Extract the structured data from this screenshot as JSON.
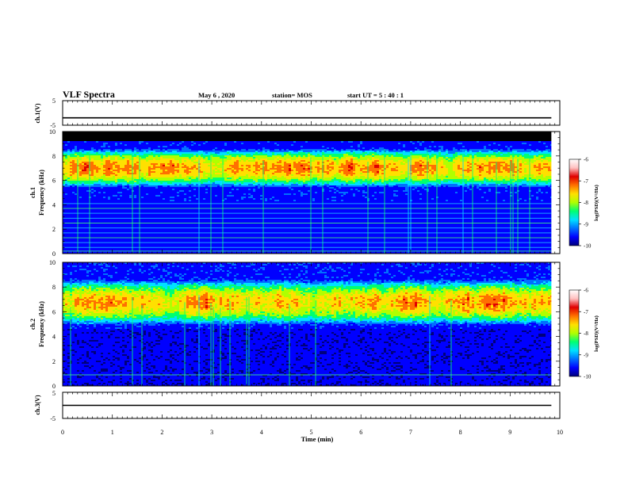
{
  "header": {
    "title": "VLF Spectra",
    "date": "May 6 , 2020",
    "station": "station= MOS",
    "start": "start UT = 5 : 40 : 1"
  },
  "chart_data": [
    {
      "type": "line",
      "panel": "ch1-voltage",
      "ylabel": "ch.1(V)",
      "ylim": [
        -5,
        5
      ],
      "yticks": [
        "5",
        "-5"
      ],
      "x": [
        0,
        9.83
      ],
      "series": [
        {
          "values": [
            -2,
            -2
          ]
        }
      ]
    },
    {
      "type": "heatmap",
      "panel": "ch1-spectrogram",
      "ylabel": "ch.1 Frequency (kHz)",
      "ylim": [
        0,
        10
      ],
      "yticks": [
        "0",
        "2",
        "4",
        "6",
        "8",
        "10"
      ],
      "xlim": [
        0,
        10
      ],
      "data_end_min": 9.83,
      "features": {
        "saturated_band_khz": [
          9.2,
          10
        ],
        "intensity_peak_band_khz": [
          5.5,
          8.5
        ],
        "horizontal_lines_khz": [
          0.2,
          0.5,
          0.9,
          1.3,
          1.7,
          2.1,
          2.5,
          2.9,
          3.3,
          3.7,
          4.1
        ]
      }
    },
    {
      "type": "heatmap",
      "panel": "ch2-spectrogram",
      "ylabel": "ch.2 Frequency (kHz)",
      "ylim": [
        0,
        10
      ],
      "yticks": [
        "0",
        "2",
        "4",
        "6",
        "8",
        "10"
      ],
      "xlim": [
        0,
        10
      ],
      "data_end_min": 9.83,
      "features": {
        "intensity_peak_band_khz": [
          5.0,
          8.5
        ],
        "horizontal_lines_khz": [
          0.9
        ]
      }
    },
    {
      "type": "line",
      "panel": "ch3-voltage",
      "ylabel": "ch.3(V)",
      "ylim": [
        -5,
        5
      ],
      "yticks": [
        "5",
        "-5"
      ],
      "xlabel": "Time (min)",
      "xticks": [
        "0",
        "1",
        "2",
        "3",
        "4",
        "5",
        "6",
        "7",
        "8",
        "9",
        "10"
      ],
      "x": [
        0,
        9.83
      ],
      "series": [
        {
          "values": [
            0,
            0
          ]
        }
      ]
    }
  ],
  "colorbar": {
    "label": "log(PSD)(V²/Hz)",
    "ticks": [
      "-6",
      "-7",
      "-8",
      "-9",
      "-10"
    ],
    "range": [
      -10,
      -6
    ],
    "colors": [
      "#00007a",
      "#0000ff",
      "#0070ff",
      "#00e0ff",
      "#00ff70",
      "#b0ff00",
      "#ffe000",
      "#ff7000",
      "#e00000",
      "#ffc0c0",
      "#ffffff"
    ]
  }
}
